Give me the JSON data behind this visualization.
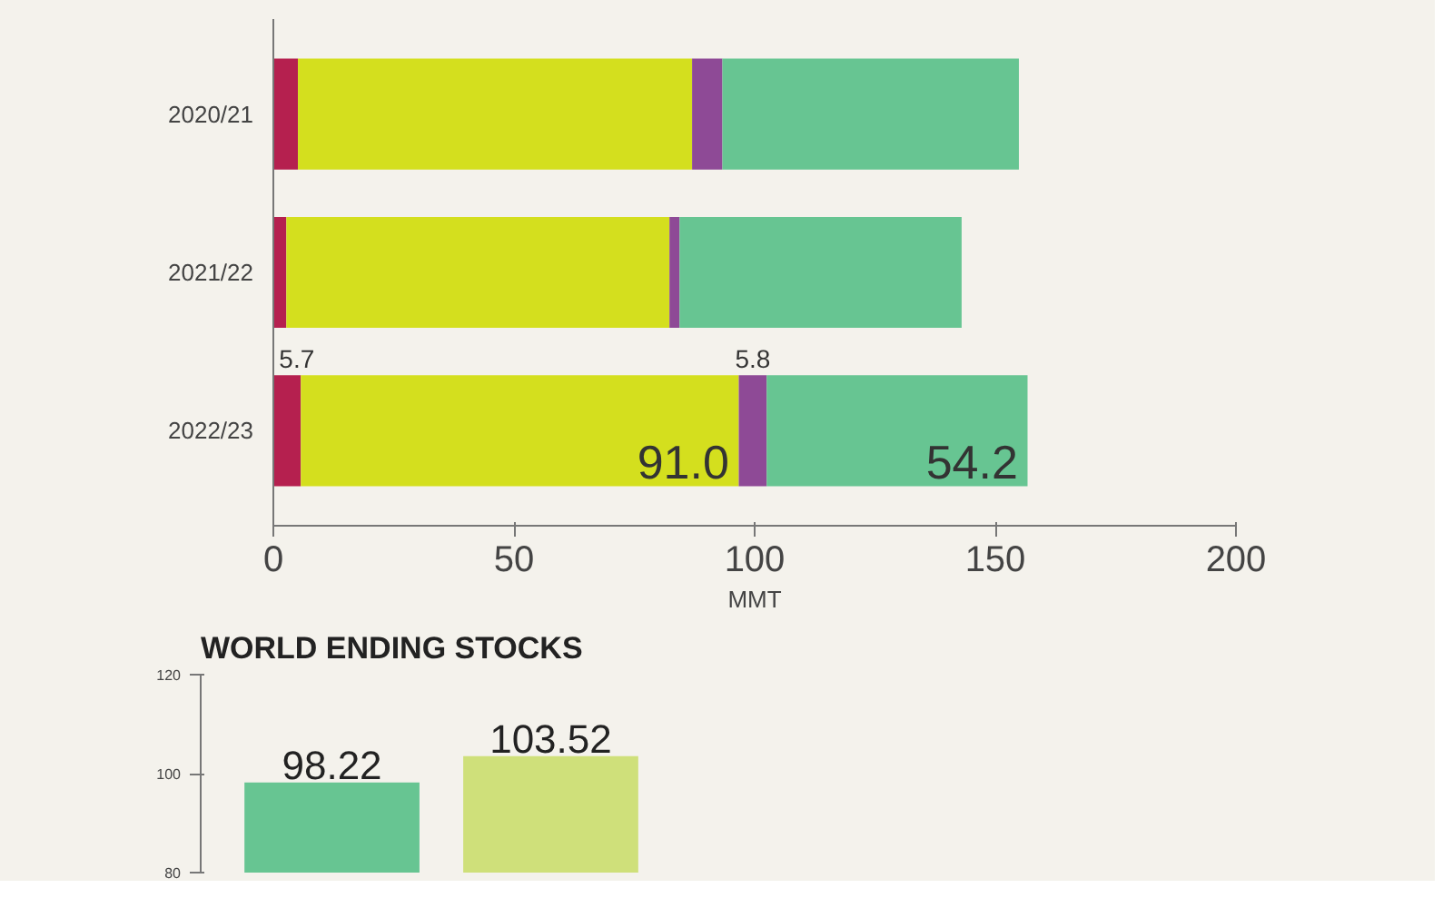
{
  "chart_data": [
    {
      "type": "bar",
      "orientation": "horizontal",
      "stacked": true,
      "xlabel": "MMT",
      "categories": [
        "2020/21",
        "2021/22",
        "2022/23"
      ],
      "xlim": [
        0,
        200
      ],
      "xticks": [
        0,
        50,
        100,
        150,
        200
      ],
      "grid": false,
      "series": [
        {
          "color": "#b5204f",
          "values": [
            5.1,
            2.7,
            5.7
          ],
          "value_labels": [
            null,
            null,
            "5.7"
          ]
        },
        {
          "color": "#d4df1e",
          "values": [
            81.9,
            79.6,
            91.0
          ],
          "value_labels": [
            null,
            null,
            "91.0"
          ]
        },
        {
          "color": "#8e4a96",
          "values": [
            6.3,
            2.1,
            5.8
          ],
          "value_labels": [
            null,
            null,
            "5.8"
          ]
        },
        {
          "color": "#67c592",
          "values": [
            61.6,
            58.6,
            54.2
          ],
          "value_labels": [
            null,
            null,
            "54.2"
          ]
        }
      ]
    },
    {
      "type": "bar",
      "title": "WORLD ENDING STOCKS",
      "categories": [
        null,
        null
      ],
      "values": [
        98.22,
        103.52
      ],
      "colors": [
        "#67c592",
        "#cfe07a"
      ],
      "ylim": [
        80,
        120
      ],
      "yticks": [
        80,
        100,
        120
      ],
      "data_labels": true,
      "grid": false
    }
  ]
}
